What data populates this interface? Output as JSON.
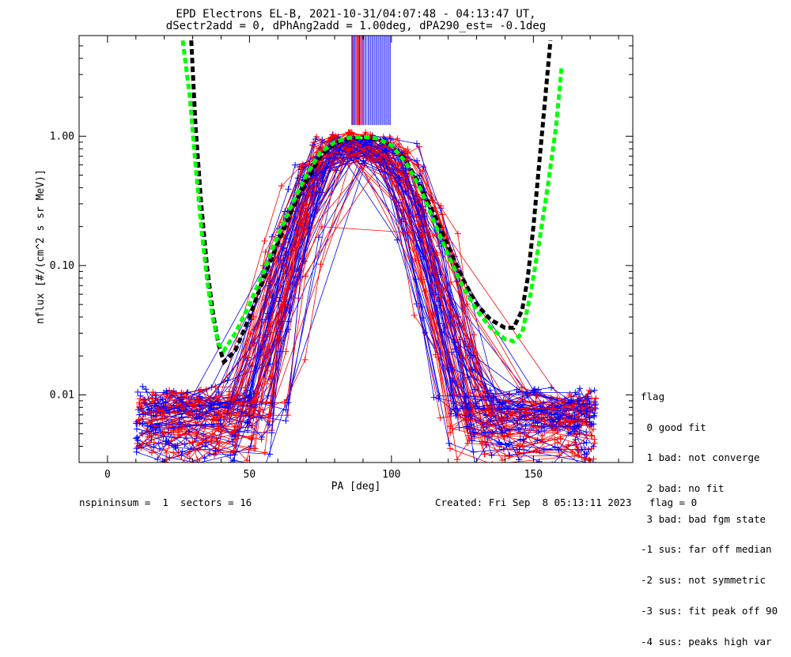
{
  "title": {
    "line1": "EPD Electrons EL-B, 2021-10-31/04:07:48 - 04:13:47 UT,",
    "line2": "dSectr2add = 0, dPhAng2add = 1.00deg, dPA290_est=  -0.1deg"
  },
  "footer": {
    "left": "nspininsum =  1  sectors = 16",
    "right": "Created: Fri Sep  8 05:13:11 2023   flag = 0"
  },
  "legend": {
    "title": "flag",
    "items": [
      " 0 good fit",
      " 1 bad: not converge",
      " 2 bad: no fit",
      " 3 bad: bad fgm state",
      "-1 sus: far off median",
      "-2 sus: not symmetric",
      "-3 sus: fit peak off 90",
      "-4 sus: peaks high var"
    ]
  },
  "colors": {
    "red": "#ff0000",
    "blue": "#0000ff",
    "black": "#000000",
    "green": "#00ff00",
    "purple": "#a000a0"
  },
  "chart_data": {
    "type": "line",
    "xlabel": "PA [deg]",
    "ylabel": "nflux [#/(cm^2 s sr MeV)]",
    "xlim": [
      -10,
      185
    ],
    "ylim": [
      0.003,
      6.0
    ],
    "yscale": "log",
    "x_ticks": [
      0,
      50,
      100,
      150
    ],
    "x_tick_labels": [
      "0",
      "50",
      "100",
      "150"
    ],
    "y_ticks": [
      0.01,
      0.1,
      1.0
    ],
    "y_tick_labels": [
      "0.01",
      "0.10",
      "1.00"
    ],
    "fit_curves": [
      {
        "color": "black",
        "style": "dashed",
        "x": [
          29.5,
          31,
          33,
          35,
          37,
          39,
          41,
          45,
          50,
          55,
          60,
          65,
          70,
          75,
          80,
          85,
          90,
          95,
          100,
          105,
          110,
          115,
          120,
          125,
          130,
          135,
          140,
          143,
          146,
          148,
          150,
          152,
          154,
          156
        ],
        "y": [
          5.5,
          1.2,
          0.3,
          0.1,
          0.045,
          0.025,
          0.018,
          0.022,
          0.04,
          0.08,
          0.15,
          0.27,
          0.45,
          0.7,
          0.88,
          0.96,
          0.98,
          0.95,
          0.85,
          0.65,
          0.42,
          0.25,
          0.14,
          0.08,
          0.05,
          0.038,
          0.033,
          0.033,
          0.045,
          0.08,
          0.2,
          0.6,
          1.8,
          5.5
        ]
      },
      {
        "color": "green",
        "style": "dashed",
        "x": [
          26.5,
          29,
          31,
          33,
          35,
          37,
          39,
          41,
          45,
          50,
          55,
          60,
          65,
          70,
          75,
          80,
          85,
          90,
          95,
          100,
          105,
          110,
          115,
          120,
          125,
          130,
          135,
          140,
          143,
          146,
          149,
          152,
          155,
          158,
          160
        ],
        "y": [
          5.5,
          2.0,
          0.6,
          0.2,
          0.08,
          0.04,
          0.025,
          0.022,
          0.03,
          0.05,
          0.09,
          0.17,
          0.3,
          0.5,
          0.75,
          0.9,
          0.97,
          0.99,
          0.96,
          0.85,
          0.63,
          0.4,
          0.22,
          0.12,
          0.07,
          0.045,
          0.033,
          0.027,
          0.026,
          0.03,
          0.06,
          0.15,
          0.4,
          1.2,
          3.5
        ]
      }
    ],
    "peak_markers": {
      "red_x": [
        86.5,
        87.5,
        88.4,
        89.3
      ],
      "purple_x": [
        88.0,
        89.8
      ],
      "blue_x": [
        86.1,
        87.0,
        88.8,
        90.3,
        91.0,
        91.8,
        92.5,
        93.2,
        93.9,
        94.6,
        95.3,
        96.0,
        96.7,
        97.4,
        98.1,
        98.8,
        99.5
      ],
      "y_bottom": 1.22
    }
  }
}
